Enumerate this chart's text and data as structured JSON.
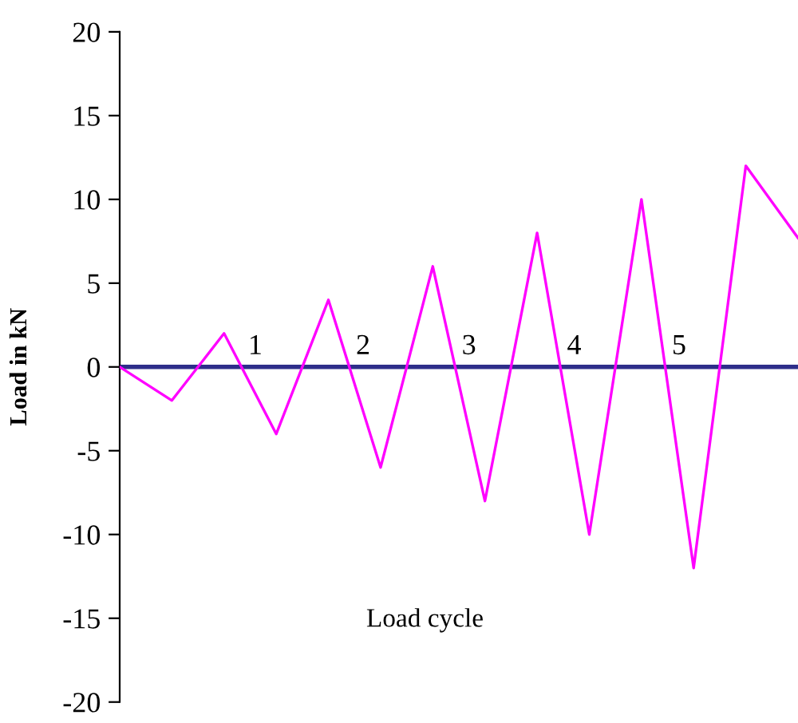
{
  "chart_data": {
    "type": "line",
    "xlabel": "Load cycle",
    "ylabel": "Load in kN",
    "categories": [
      null,
      null,
      null,
      null,
      null,
      null,
      null,
      null,
      null,
      null,
      null,
      null,
      null,
      null
    ],
    "series": [
      {
        "color": "#ff00ff",
        "values": [
          0,
          -2,
          2,
          -4,
          4,
          -6,
          6,
          -8,
          8,
          -10,
          10,
          -12,
          12,
          7.7
        ]
      }
    ],
    "ylim": [
      -20,
      20
    ],
    "yticks": [
      -20,
      -15,
      -10,
      -5,
      0,
      5,
      10,
      15,
      20
    ],
    "tick_labels": "y",
    "grid": false,
    "legend": false,
    "marker": "none",
    "line_style": "solid",
    "ref_lines": [
      {
        "axis": "y",
        "value": 0,
        "color": "#2e2e8a"
      }
    ],
    "annotations": [
      "1",
      "2",
      "3",
      "4",
      "5"
    ]
  }
}
